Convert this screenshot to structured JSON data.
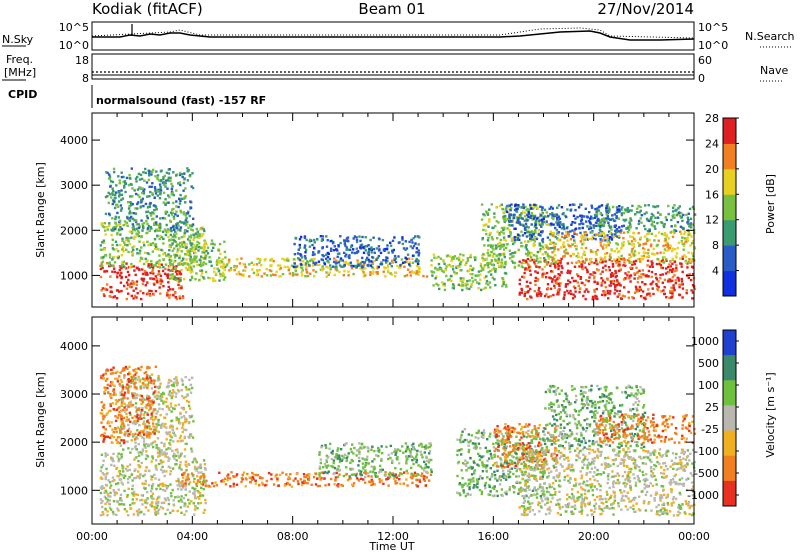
{
  "header": {
    "station": "Kodiak (fitACF)",
    "beam": "Beam 01",
    "date": "27/Nov/2014"
  },
  "top_panels": {
    "nsky_label": "N.Sky",
    "nsky_ticks": [
      "10^5",
      "10^0"
    ],
    "nsearch_label": "N.Search",
    "nsearch_ticks": [
      "10^5",
      "10^0"
    ],
    "freq_label_1": "Freq.",
    "freq_label_2": "[MHz]",
    "freq_ticks": [
      "18",
      "8"
    ],
    "nave_label": "Nave",
    "nave_ticks": [
      "60",
      "0"
    ],
    "cpid_label": "CPID",
    "cpid_text": "normalsound (fast) -157 RF"
  },
  "chart_data": [
    {
      "type": "heatmap",
      "name": "power",
      "ylabel": "Slant Range [km]",
      "xlabel": "",
      "yticks": [
        1000,
        2000,
        3000,
        4000
      ],
      "ylim": [
        300,
        4600
      ],
      "xlim_hours": [
        0,
        24
      ],
      "colorbar_label": "Power [dB]",
      "colorbar_ticks": [
        "4",
        "8",
        "12",
        "16",
        "20",
        "24",
        "28"
      ],
      "colorbar_colors": [
        "#1030e0",
        "#2a5cc8",
        "#3a9a70",
        "#78c040",
        "#e8d020",
        "#f08020",
        "#e02020"
      ],
      "scatter_regions": [
        {
          "t0": 0.3,
          "t1": 3.6,
          "r0": 500,
          "r1": 1300,
          "level": 6
        },
        {
          "t0": 0.3,
          "t1": 4.5,
          "r0": 1200,
          "r1": 2200,
          "level": 3
        },
        {
          "t0": 0.5,
          "t1": 4.0,
          "r0": 2000,
          "r1": 3400,
          "level": 2
        },
        {
          "t0": 3.0,
          "t1": 5.3,
          "r0": 900,
          "r1": 1800,
          "level": 3
        },
        {
          "t0": 5.0,
          "t1": 13.5,
          "r0": 1000,
          "r1": 1400,
          "level": 4
        },
        {
          "t0": 8.0,
          "t1": 13.0,
          "r0": 1200,
          "r1": 1900,
          "level": 1
        },
        {
          "t0": 13.5,
          "t1": 16.5,
          "r0": 700,
          "r1": 1500,
          "level": 3
        },
        {
          "t0": 15.5,
          "t1": 18.5,
          "r0": 1200,
          "r1": 2600,
          "level": 3
        },
        {
          "t0": 16.5,
          "t1": 21.0,
          "r0": 1800,
          "r1": 2600,
          "level": 1
        },
        {
          "t0": 17.0,
          "t1": 24.0,
          "r0": 500,
          "r1": 1400,
          "level": 6
        },
        {
          "t0": 18.0,
          "t1": 24.0,
          "r0": 1300,
          "r1": 2000,
          "level": 4
        },
        {
          "t0": 20.0,
          "t1": 24.0,
          "r0": 2000,
          "r1": 2600,
          "level": 2
        }
      ]
    },
    {
      "type": "heatmap",
      "name": "velocity",
      "ylabel": "Slant Range [km]",
      "xlabel": "Time UT",
      "xtick_labels": [
        "00:00",
        "04:00",
        "08:00",
        "12:00",
        "16:00",
        "20:00",
        "00:00"
      ],
      "yticks": [
        1000,
        2000,
        3000,
        4000
      ],
      "ylim": [
        300,
        4600
      ],
      "xlim_hours": [
        0,
        24
      ],
      "colorbar_label": "Velocity [m s⁻¹]",
      "colorbar_ticks": [
        "1000",
        "500",
        "100",
        "25",
        "-25",
        "-100",
        "-500",
        "-1000"
      ],
      "colorbar_colors": [
        "#2040d0",
        "#3a8a6a",
        "#70c040",
        "#b8b8b0",
        "#f0b020",
        "#f08020",
        "#e83020"
      ],
      "scatter_regions": [
        {
          "t0": 0.3,
          "t1": 4.5,
          "r0": 500,
          "r1": 1800,
          "level": 3
        },
        {
          "t0": 1.0,
          "t1": 4.0,
          "r0": 1800,
          "r1": 3400,
          "level": 3
        },
        {
          "t0": 0.3,
          "t1": 2.5,
          "r0": 2000,
          "r1": 3600,
          "level": 5
        },
        {
          "t0": 3.5,
          "t1": 13.5,
          "r0": 1100,
          "r1": 1400,
          "level": 5
        },
        {
          "t0": 9.0,
          "t1": 13.5,
          "r0": 1300,
          "r1": 2000,
          "level": 2
        },
        {
          "t0": 14.5,
          "t1": 18.0,
          "r0": 900,
          "r1": 2300,
          "level": 2
        },
        {
          "t0": 16.0,
          "t1": 18.5,
          "r0": 1500,
          "r1": 2400,
          "level": 5
        },
        {
          "t0": 17.0,
          "t1": 24.0,
          "r0": 500,
          "r1": 1900,
          "level": 3
        },
        {
          "t0": 18.0,
          "t1": 22.0,
          "r0": 1900,
          "r1": 3200,
          "level": 2
        },
        {
          "t0": 20.0,
          "t1": 24.0,
          "r0": 2000,
          "r1": 2600,
          "level": 5
        }
      ]
    }
  ]
}
